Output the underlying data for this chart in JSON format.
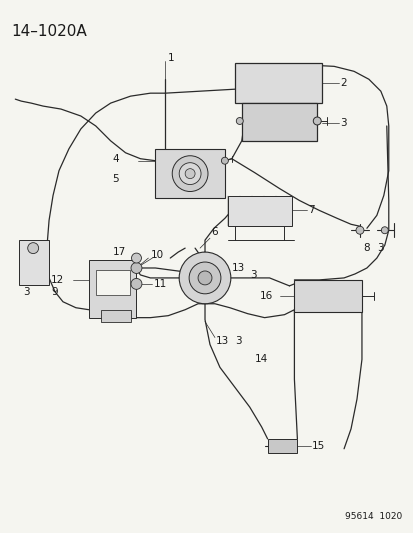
{
  "title": "14–1020A",
  "footer": "95614  1020",
  "bg_color": "#f5f5f0",
  "line_color": "#2a2a2a",
  "text_color": "#1a1a1a",
  "title_fontsize": 11,
  "footer_fontsize": 6.5,
  "label_fontsize": 7.5,
  "fig_width": 4.14,
  "fig_height": 5.33,
  "dpi": 100
}
